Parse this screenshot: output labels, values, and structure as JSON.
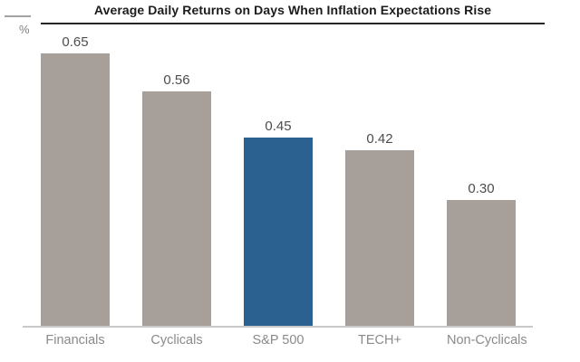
{
  "chart_data": {
    "type": "bar",
    "title": "Average Daily Returns on Days When Inflation Expectations Rise",
    "ylabel": "%",
    "categories": [
      "Financials",
      "Cyclicals",
      "S&P 500",
      "TECH+",
      "Non-Cyclicals"
    ],
    "values": [
      0.65,
      0.56,
      0.45,
      0.42,
      0.3
    ],
    "value_labels": [
      "0.65",
      "0.56",
      "0.45",
      "0.42",
      "0.30"
    ],
    "highlight_index": 2,
    "highlighted_category": "S&P 500",
    "ylim": [
      0,
      0.7
    ],
    "grid": false,
    "legend": false,
    "colors": {
      "bar_default": "#a7a09a",
      "bar_highlight": "#2a6191",
      "title_text": "#1c1c1c",
      "value_label": "#4d4d4d",
      "category_label": "#8a8a8a",
      "axis_line": "#c9c9c9"
    }
  }
}
